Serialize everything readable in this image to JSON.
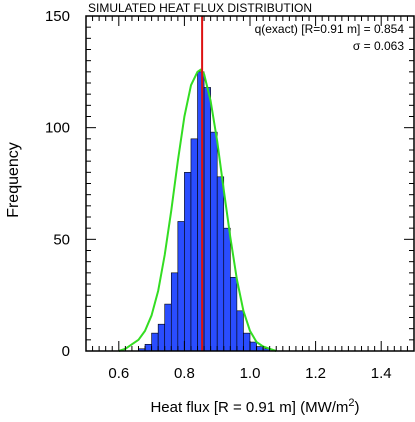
{
  "chart_data": {
    "type": "bar",
    "title": "SIMULATED HEAT FLUX DISTRIBUTION",
    "xlabel": "Heat flux [R = 0.91 m] (MW/m",
    "xlabel_sup": "2",
    "xlabel_end": ")",
    "ylabel": "Frequency",
    "xlim": [
      0.5,
      1.5
    ],
    "ylim": [
      0,
      150
    ],
    "xticks": [
      0.6,
      0.8,
      1.0,
      1.2,
      1.4
    ],
    "xtick_labels": [
      "0.6",
      "0.8",
      "1.0",
      "1.2",
      "1.4"
    ],
    "yticks": [
      0,
      50,
      100,
      150
    ],
    "ytick_labels": [
      "0",
      "50",
      "100",
      "150"
    ],
    "grid": false,
    "annotations": [
      "q(exact) [R=0.91 m] = 0.854",
      "σ = 0.063"
    ],
    "exact_value": 0.854,
    "bar_color": "#2a4dff",
    "curve_color": "#33dd22",
    "line_color": "#dd1111",
    "bin_width": 0.02,
    "bins": [
      {
        "x0": 0.66,
        "value": 1
      },
      {
        "x0": 0.68,
        "value": 3
      },
      {
        "x0": 0.7,
        "value": 8
      },
      {
        "x0": 0.72,
        "value": 12
      },
      {
        "x0": 0.74,
        "value": 21
      },
      {
        "x0": 0.76,
        "value": 35
      },
      {
        "x0": 0.78,
        "value": 58
      },
      {
        "x0": 0.8,
        "value": 80
      },
      {
        "x0": 0.82,
        "value": 95
      },
      {
        "x0": 0.84,
        "value": 125
      },
      {
        "x0": 0.86,
        "value": 118
      },
      {
        "x0": 0.88,
        "value": 98
      },
      {
        "x0": 0.9,
        "value": 78
      },
      {
        "x0": 0.92,
        "value": 55
      },
      {
        "x0": 0.94,
        "value": 33
      },
      {
        "x0": 0.96,
        "value": 18
      },
      {
        "x0": 0.98,
        "value": 8
      },
      {
        "x0": 1.0,
        "value": 4
      },
      {
        "x0": 1.02,
        "value": 2
      },
      {
        "x0": 1.04,
        "value": 1
      }
    ],
    "fit_curve": {
      "x": [
        0.6,
        0.62,
        0.64,
        0.66,
        0.68,
        0.7,
        0.72,
        0.74,
        0.76,
        0.78,
        0.8,
        0.82,
        0.84,
        0.85,
        0.86,
        0.88,
        0.9,
        0.92,
        0.94,
        0.96,
        0.98,
        1.0,
        1.02,
        1.04,
        1.06,
        1.08
      ],
      "y": [
        0,
        1,
        3,
        5,
        9,
        16,
        27,
        43,
        63,
        85,
        105,
        119,
        125,
        126,
        124,
        112,
        94,
        72,
        51,
        32,
        18,
        9,
        4,
        2,
        1,
        0
      ]
    }
  }
}
